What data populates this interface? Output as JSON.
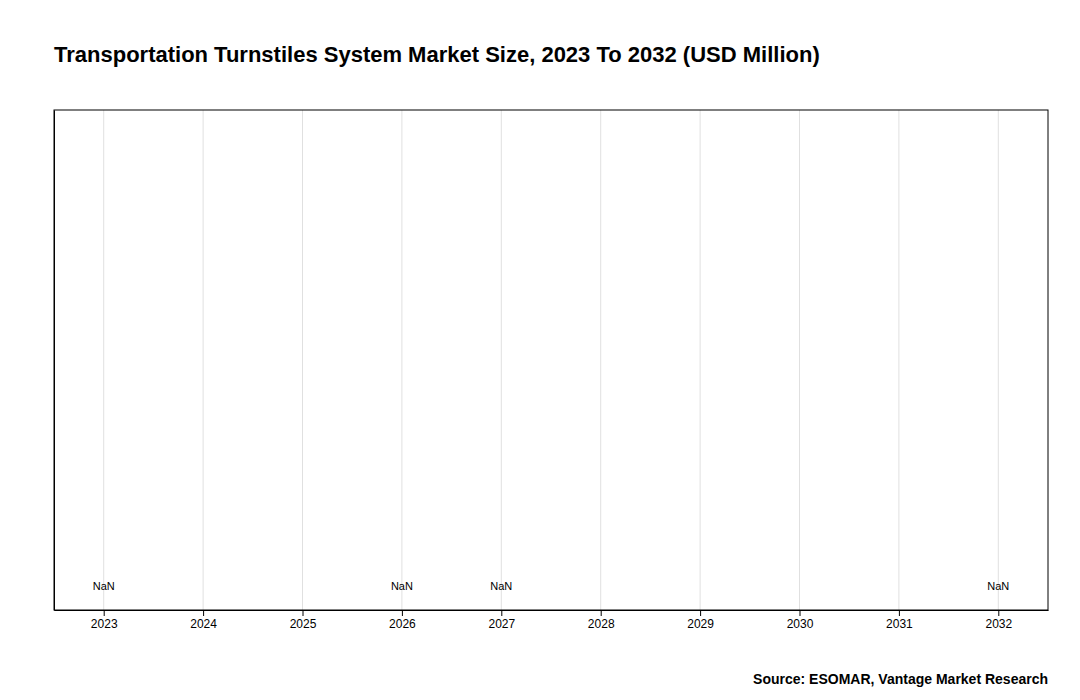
{
  "chart_data": {
    "type": "bar",
    "title": "Transportation Turnstiles System Market Size, 2023 To 2032 (USD Million)",
    "source": "Source: ESOMAR, Vantage Market Research",
    "xlim": [
      2022.5,
      2032.5
    ],
    "xticks": [
      2023,
      2024,
      2025,
      2026,
      2027,
      2028,
      2029,
      2030,
      2031,
      2032
    ],
    "ylim": [
      0,
      1
    ],
    "grid": true,
    "tick_labels": "x",
    "annotations": [
      {
        "x": 2023,
        "text": "NaN"
      },
      {
        "x": 2026,
        "text": "NaN"
      },
      {
        "x": 2027,
        "text": "NaN"
      },
      {
        "x": 2032,
        "text": "NaN"
      }
    ]
  }
}
